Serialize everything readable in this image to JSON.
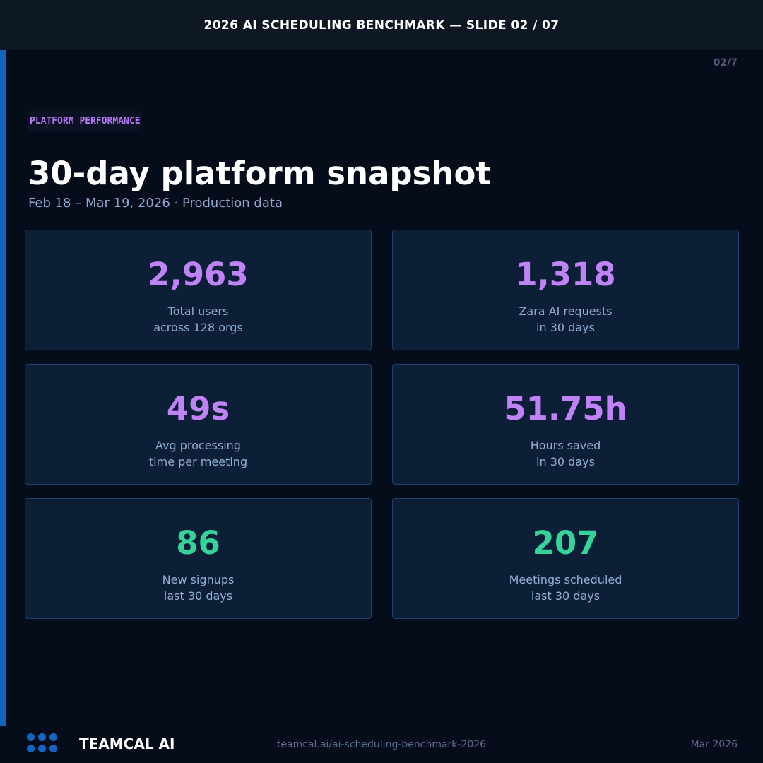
{
  "banner": {
    "text": "2026 AI SCHEDULING BENCHMARK — SLIDE 02 / 07"
  },
  "page_counter": "02/7",
  "kicker": "PLATFORM PERFORMANCE",
  "title": "30-day platform snapshot",
  "subtitle": "Feb 18 – Mar 19, 2026 · Production data",
  "colors": {
    "accent": "#1565c0",
    "metric_purple": "#bf83f6",
    "metric_green": "#34d399",
    "card_bg": "#0d1f36",
    "page_bg": "#060d1a"
  },
  "metrics": [
    {
      "value": "2,963",
      "line1": "Total users",
      "line2": "across 128 orgs",
      "color": "purple"
    },
    {
      "value": "1,318",
      "line1": "Zara AI requests",
      "line2": "in 30 days",
      "color": "purple"
    },
    {
      "value": "49s",
      "line1": "Avg processing",
      "line2": "time per meeting",
      "color": "purple"
    },
    {
      "value": "51.75h",
      "line1": "Hours saved",
      "line2": "in 30 days",
      "color": "purple"
    },
    {
      "value": "86",
      "line1": "New signups",
      "line2": "last 30 days",
      "color": "green"
    },
    {
      "value": "207",
      "line1": "Meetings scheduled",
      "line2": "last 30 days",
      "color": "green"
    }
  ],
  "footer": {
    "logo_icon": "six-dot-grid-icon",
    "brand": "TEAMCAL AI",
    "url": "teamcal.ai/ai-scheduling-benchmark-2026",
    "date": "Mar 2026"
  }
}
